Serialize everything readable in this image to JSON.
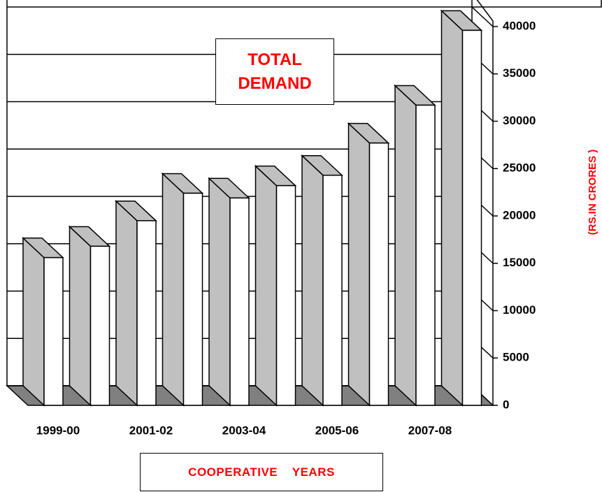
{
  "chart_data": {
    "type": "bar3d",
    "title": "TOTAL DEMAND",
    "x_label": "COOPERATIVE    YEARS",
    "y_label": "(RS.IN CRORES )",
    "categories": [
      "1999-00",
      null,
      "2001-02",
      null,
      "2003-04",
      null,
      "2005-06",
      null,
      "2007-08",
      null
    ],
    "values": [
      15600,
      16800,
      19500,
      22400,
      21900,
      23200,
      24300,
      27700,
      31700,
      39600
    ],
    "color": "#c0c0c0",
    "ylim": [
      0,
      40000
    ],
    "yticks": [
      0,
      5000,
      10000,
      15000,
      20000,
      25000,
      30000,
      35000,
      40000
    ],
    "grid": true
  }
}
